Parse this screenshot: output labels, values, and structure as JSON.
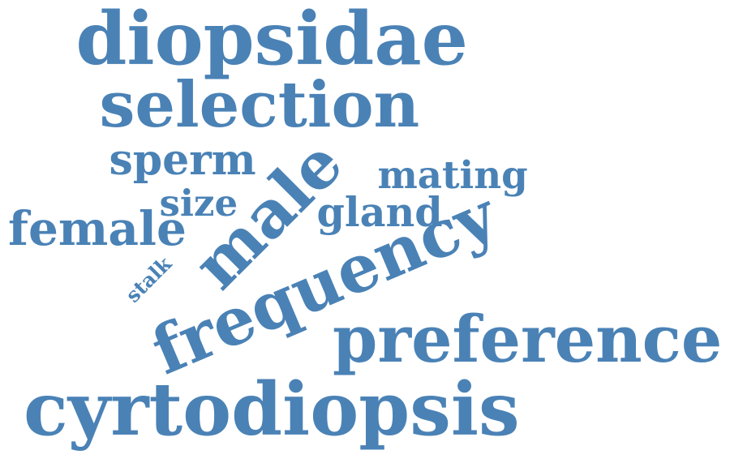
{
  "word_cloud": {
    "color": "#4a82b6",
    "words": [
      {
        "id": "diopsidae",
        "text": "diopsidae"
      },
      {
        "id": "selection",
        "text": "selection"
      },
      {
        "id": "sperm",
        "text": "sperm"
      },
      {
        "id": "male",
        "text": "male"
      },
      {
        "id": "mating",
        "text": "mating"
      },
      {
        "id": "size",
        "text": "size"
      },
      {
        "id": "gland",
        "text": "gland"
      },
      {
        "id": "female",
        "text": "female"
      },
      {
        "id": "stalk",
        "text": "stalk"
      },
      {
        "id": "frequency",
        "text": "frequency"
      },
      {
        "id": "preference",
        "text": "preference"
      },
      {
        "id": "cyrtodiopsis",
        "text": "cyrtodiopsis"
      }
    ]
  }
}
